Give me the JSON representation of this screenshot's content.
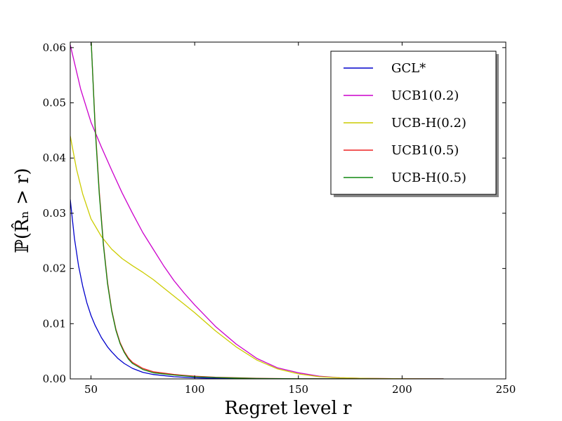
{
  "chart_data": {
    "type": "line",
    "title": "",
    "xlabel": "Regret level r",
    "ylabel": "ℙ(R̂ₙ > r)",
    "xlim": [
      40,
      250
    ],
    "ylim": [
      0.0,
      0.061
    ],
    "xticks": [
      "50",
      "100",
      "150",
      "200",
      "250"
    ],
    "yticks": [
      "0.00",
      "0.01",
      "0.02",
      "0.03",
      "0.04",
      "0.05",
      "0.06"
    ],
    "grid": false,
    "legend_position": "top-right",
    "series": [
      {
        "name": "GCL*",
        "color": "#0000cc",
        "x": [
          40,
          42,
          44,
          46,
          48,
          50,
          52,
          55,
          58,
          60,
          63,
          66,
          70,
          75,
          80,
          90,
          100,
          110,
          120,
          130,
          150,
          200,
          220
        ],
        "y": [
          0.0325,
          0.0255,
          0.0205,
          0.0168,
          0.0138,
          0.0115,
          0.0097,
          0.0075,
          0.0058,
          0.0049,
          0.0037,
          0.0028,
          0.0019,
          0.0012,
          0.0008,
          0.0004,
          0.0002,
          0.0001,
          6e-05,
          3e-05,
          1e-05,
          0.0,
          0.0
        ]
      },
      {
        "name": "UCB1(0.2)",
        "color": "#cc00cc",
        "x": [
          40,
          45,
          50,
          55,
          60,
          65,
          70,
          75,
          80,
          85,
          90,
          95,
          100,
          110,
          120,
          130,
          140,
          150,
          160,
          170,
          180,
          200,
          220
        ],
        "y": [
          0.0605,
          0.0525,
          0.0465,
          0.042,
          0.0378,
          0.0337,
          0.03,
          0.0265,
          0.0235,
          0.0205,
          0.0178,
          0.0155,
          0.0134,
          0.0095,
          0.0063,
          0.0037,
          0.002,
          0.0011,
          0.0005,
          0.0002,
          0.0001,
          2e-05,
          0.0
        ]
      },
      {
        "name": "UCB-H(0.2)",
        "color": "#cccc00",
        "x": [
          40,
          43,
          46,
          50,
          55,
          60,
          65,
          70,
          75,
          80,
          85,
          90,
          95,
          100,
          110,
          120,
          130,
          140,
          150,
          160,
          170,
          180,
          200,
          220
        ],
        "y": [
          0.044,
          0.038,
          0.0335,
          0.029,
          0.0258,
          0.0235,
          0.0218,
          0.0205,
          0.0193,
          0.018,
          0.0165,
          0.015,
          0.0135,
          0.012,
          0.0087,
          0.0058,
          0.0034,
          0.0018,
          0.0009,
          0.0004,
          0.0002,
          0.0001,
          2e-05,
          0.0
        ]
      },
      {
        "name": "UCB1(0.5)",
        "color": "#ee2222",
        "x": [
          50,
          52,
          54,
          56,
          58,
          60,
          62,
          64,
          66,
          68,
          70,
          75,
          80,
          90,
          100,
          110,
          120,
          130,
          150,
          200,
          220
        ],
        "y": [
          0.062,
          0.046,
          0.034,
          0.0245,
          0.0175,
          0.0125,
          0.009,
          0.0066,
          0.005,
          0.0038,
          0.003,
          0.0019,
          0.0013,
          0.0008,
          0.0005,
          0.0003,
          0.0002,
          0.0001,
          3e-05,
          0.0,
          0.0
        ]
      },
      {
        "name": "UCB-H(0.5)",
        "color": "#118811",
        "x": [
          50,
          52,
          54,
          56,
          58,
          60,
          62,
          64,
          66,
          68,
          70,
          75,
          80,
          90,
          100,
          110,
          120,
          130,
          150,
          200,
          220
        ],
        "y": [
          0.062,
          0.0455,
          0.0335,
          0.0242,
          0.0172,
          0.0123,
          0.0088,
          0.0064,
          0.0048,
          0.0036,
          0.0028,
          0.0017,
          0.0011,
          0.0007,
          0.0004,
          0.00025,
          0.00015,
          8e-05,
          2e-05,
          0.0,
          0.0
        ]
      }
    ]
  }
}
